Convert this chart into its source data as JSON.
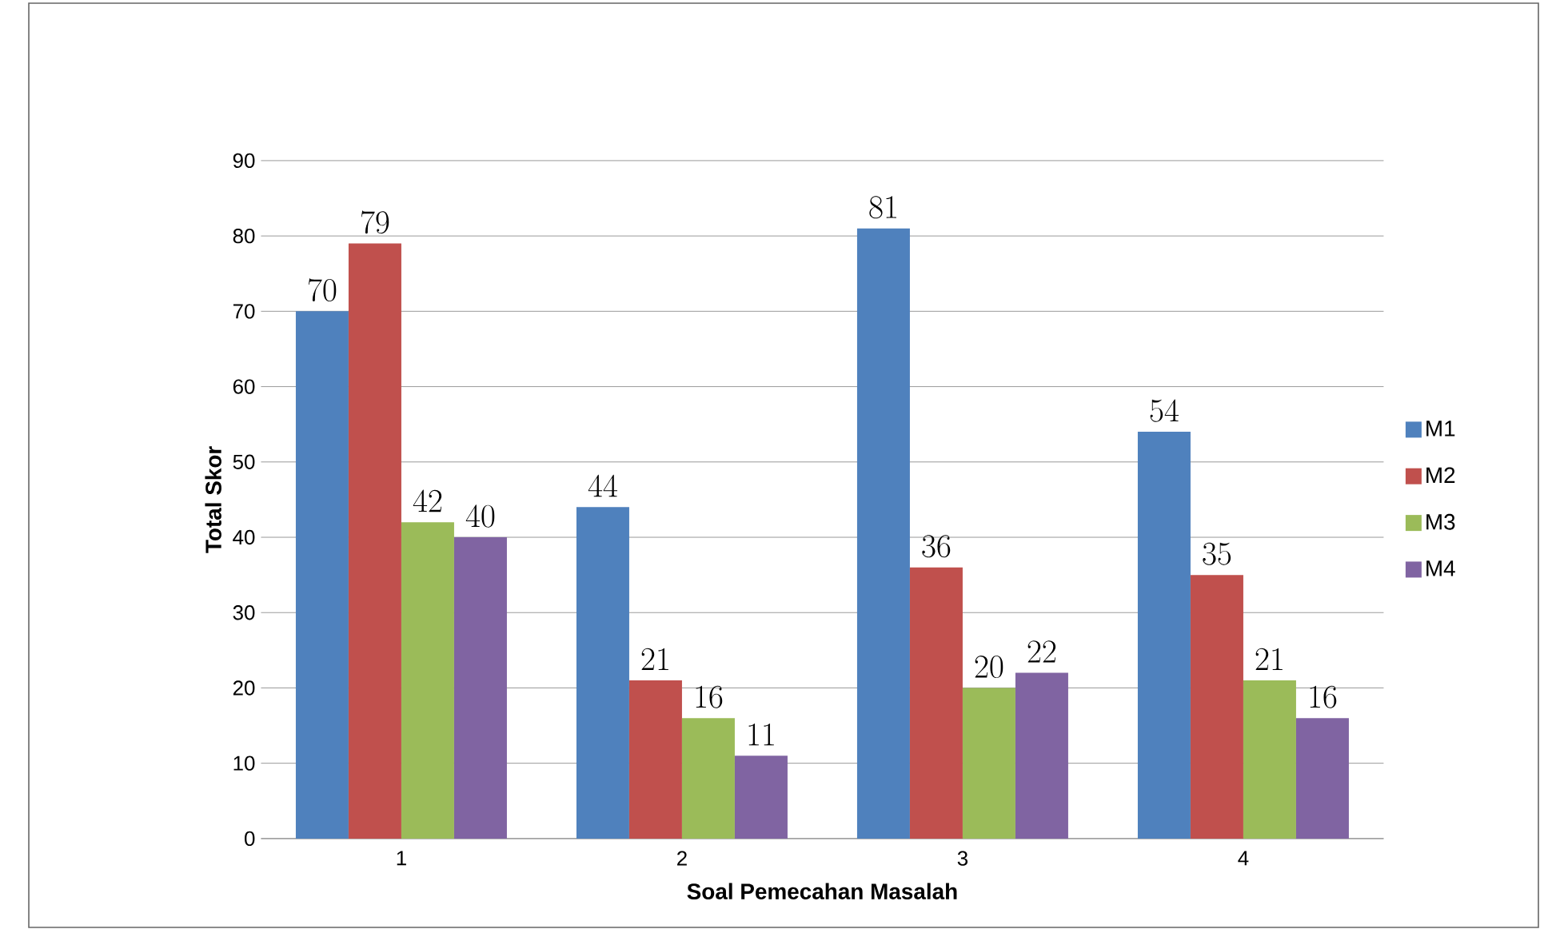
{
  "chart_data": {
    "type": "bar",
    "xlabel": "Soal Pemecahan  Masalah",
    "ylabel": "Total Skor",
    "categories": [
      "1",
      "2",
      "3",
      "4"
    ],
    "series": [
      {
        "name": "M1",
        "color": "#4f81bd",
        "values": [
          70,
          44,
          81,
          54
        ]
      },
      {
        "name": "M2",
        "color": "#c0504d",
        "values": [
          79,
          21,
          36,
          35
        ]
      },
      {
        "name": "M3",
        "color": "#9bbb59",
        "values": [
          42,
          16,
          20,
          21
        ]
      },
      {
        "name": "M4",
        "color": "#8064a2",
        "values": [
          40,
          11,
          22,
          16
        ]
      }
    ],
    "ylim": [
      0,
      90
    ],
    "yticks": [
      0,
      10,
      20,
      30,
      40,
      50,
      60,
      70,
      80,
      90
    ],
    "grid": "y",
    "legend": "right",
    "data_labels": true
  }
}
